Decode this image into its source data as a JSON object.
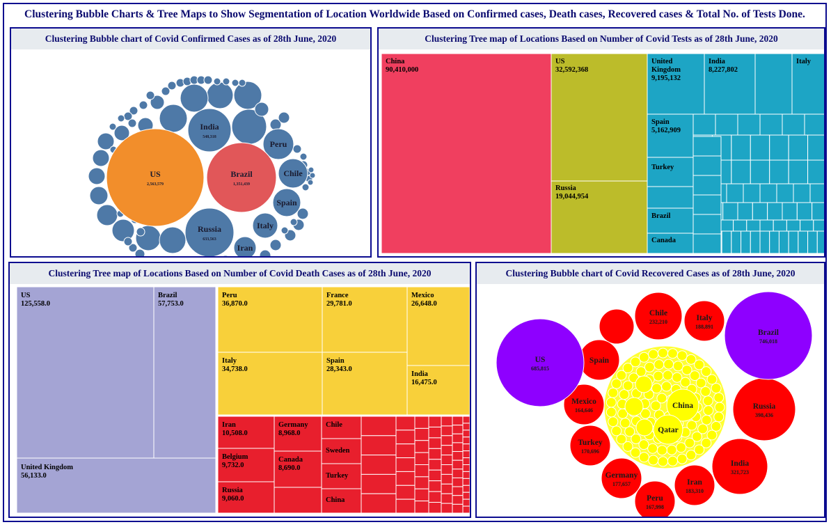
{
  "title": "Clustering Bubble Charts & Tree Maps to Show Segmentation of Location Worldwide Based on Confirmed cases, Death cases, Recovered cases & Total No. of Tests Done.",
  "colors": {
    "border": "#0b0b8f",
    "header_bg": "#e7ebef",
    "title": "#0b0b6f"
  },
  "chart_data": [
    {
      "type": "bubble",
      "title": "Clustering Bubble chart of Covid Confirmed Cases as of 28th June, 2020",
      "series_colors": {
        "US": "#f28e2b",
        "Brazil": "#e15759",
        "other": "#4e79a7"
      },
      "labeled": [
        {
          "label": "US",
          "value": 2563579,
          "value_label": "2,563,579"
        },
        {
          "label": "Brazil",
          "value": 1351439,
          "value_label": "1,351,439"
        },
        {
          "label": "Russia",
          "value": 633563,
          "value_label": "633,563"
        },
        {
          "label": "India",
          "value": 548318,
          "value_label": "548,318"
        },
        {
          "label": "Peru",
          "value_label": ""
        },
        {
          "label": "Chile",
          "value_label": ""
        },
        {
          "label": "Spain",
          "value_label": ""
        },
        {
          "label": "Italy",
          "value_label": ""
        },
        {
          "label": "Iran",
          "value_label": ""
        }
      ]
    },
    {
      "type": "treemap",
      "title": "Clustering Tree map of Locations Based on Number of Covid Tests as of 28th June, 2020",
      "series_colors": {
        "China": "#f03f5f",
        "US_Russia": "#bcbc2a",
        "other": "#1da5c5"
      },
      "labeled": [
        {
          "label": "China",
          "value_label": "90,410,000"
        },
        {
          "label": "US",
          "value_label": "32,592,368"
        },
        {
          "label": "Russia",
          "value_label": "19,044,954"
        },
        {
          "label": "United Kingdom",
          "value_label": "9,195,132"
        },
        {
          "label": "India",
          "value_label": "8,227,802"
        },
        {
          "label": "Italy",
          "value_label": ""
        },
        {
          "label": "Spain",
          "value_label": "5,162,909"
        },
        {
          "label": "Turkey",
          "value_label": ""
        },
        {
          "label": "Brazil",
          "value_label": ""
        },
        {
          "label": "Canada",
          "value_label": ""
        }
      ]
    },
    {
      "type": "treemap",
      "title": "Clustering Tree map of Locations Based on Number of Covid Death Cases as of 28th June, 2020",
      "series_colors": {
        "cluster1": "#a4a4d4",
        "cluster2": "#f8d03a",
        "cluster3": "#e81f2d"
      },
      "labeled": [
        {
          "label": "US",
          "value_label": "125,558.0"
        },
        {
          "label": "Brazil",
          "value_label": "57,753.0"
        },
        {
          "label": "United Kingdom",
          "value_label": "56,133.0"
        },
        {
          "label": "Peru",
          "value_label": "36,870.0"
        },
        {
          "label": "France",
          "value_label": "29,781.0"
        },
        {
          "label": "Mexico",
          "value_label": "26,648.0"
        },
        {
          "label": "Italy",
          "value_label": "34,738.0"
        },
        {
          "label": "Spain",
          "value_label": "28,343.0"
        },
        {
          "label": "India",
          "value_label": "16,475.0"
        },
        {
          "label": "Iran",
          "value_label": "10,508.0"
        },
        {
          "label": "Germany",
          "value_label": "8,968.0"
        },
        {
          "label": "Belgium",
          "value_label": "9,732.0"
        },
        {
          "label": "Canada",
          "value_label": "8,690.0"
        },
        {
          "label": "Russia",
          "value_label": "9,060.0"
        },
        {
          "label": "Chile",
          "value_label": ""
        },
        {
          "label": "Sweden",
          "value_label": ""
        },
        {
          "label": "Turkey",
          "value_label": ""
        },
        {
          "label": "China",
          "value_label": ""
        }
      ]
    },
    {
      "type": "bubble",
      "title": "Clustering Bubble chart of Covid Recovered Cases as of 28th June, 2020",
      "series_colors": {
        "cluster1": "#8e00ff",
        "cluster2": "#ff0000",
        "cluster3": "#ffff00"
      },
      "labeled": [
        {
          "label": "Brazil",
          "value_label": "746,018"
        },
        {
          "label": "US",
          "value_label": "685,815"
        },
        {
          "label": "Russia",
          "value_label": "398,436"
        },
        {
          "label": "India",
          "value_label": "321,723"
        },
        {
          "label": "Chile",
          "value_label": "232,210"
        },
        {
          "label": "Italy",
          "value_label": "188,891"
        },
        {
          "label": "Iran",
          "value_label": "183,310"
        },
        {
          "label": "Germany",
          "value_label": "177,657"
        },
        {
          "label": "Turkey",
          "value_label": "170,696"
        },
        {
          "label": "Peru",
          "value_label": "167,998"
        },
        {
          "label": "Mexico",
          "value_label": "164,646"
        },
        {
          "label": "Spain",
          "value_label": ""
        },
        {
          "label": "China",
          "value_label": ""
        },
        {
          "label": "Qatar",
          "value_label": ""
        }
      ]
    }
  ]
}
